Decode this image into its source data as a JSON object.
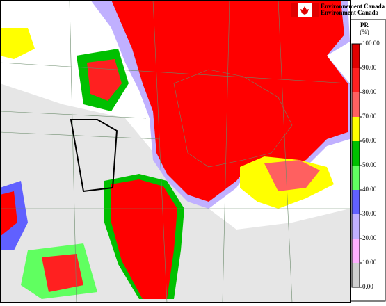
{
  "header": {
    "org_fr": "Environnement Canada",
    "org_en": "Environment Canada"
  },
  "legend": {
    "title": "PR",
    "unit": "(%)",
    "ticks": [
      {
        "value": 100,
        "label": "100.00"
      },
      {
        "value": 90,
        "label": "90.00"
      },
      {
        "value": 80,
        "label": "80.00"
      },
      {
        "value": 70,
        "label": "70.00"
      },
      {
        "value": 60,
        "label": "60.00"
      },
      {
        "value": 50,
        "label": "50.00"
      },
      {
        "value": 40,
        "label": "40.00"
      },
      {
        "value": 30,
        "label": "30.00"
      },
      {
        "value": 20,
        "label": "20.00"
      },
      {
        "value": 10,
        "label": "10.00"
      },
      {
        "value": 0,
        "label": "0.00"
      }
    ],
    "colors": [
      "#e00000",
      "#ff2020",
      "#ff6060",
      "#ffff00",
      "#00c000",
      "#60ff60",
      "#6060ff",
      "#c0b0ff",
      "#ffb0ff",
      "#d0d0d0"
    ]
  }
}
